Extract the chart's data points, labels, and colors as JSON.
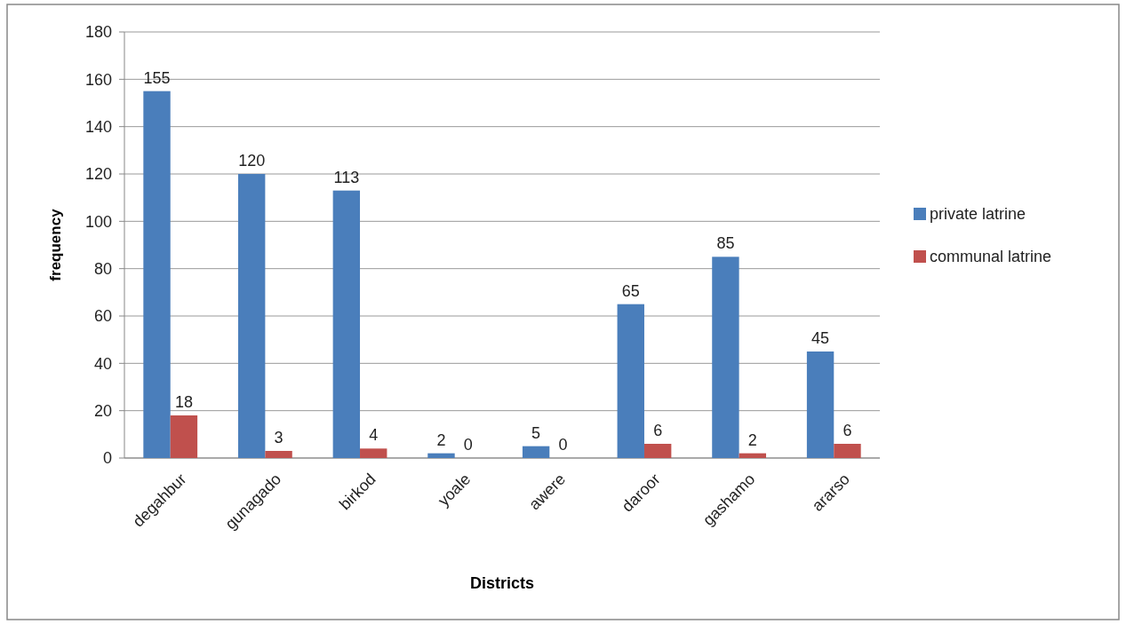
{
  "chart_data": {
    "type": "bar",
    "xlabel": "Districts",
    "ylabel": "frequency",
    "categories": [
      "degahbur",
      "gunagado",
      "birkod",
      "yoale",
      "awere",
      "daroor",
      "gashamo",
      "ararso"
    ],
    "series": [
      {
        "name": "private latrine",
        "color": "#4a7ebb",
        "values": [
          155,
          120,
          113,
          2,
          5,
          65,
          85,
          45
        ]
      },
      {
        "name": "communal latrine",
        "color": "#c0504d",
        "values": [
          18,
          3,
          4,
          0,
          0,
          6,
          2,
          6
        ]
      }
    ],
    "ylim": [
      0,
      180
    ],
    "yticks": [
      0,
      20,
      40,
      60,
      80,
      100,
      120,
      140,
      160,
      180
    ],
    "grid": "y",
    "legend": "right",
    "data_labels": true
  }
}
